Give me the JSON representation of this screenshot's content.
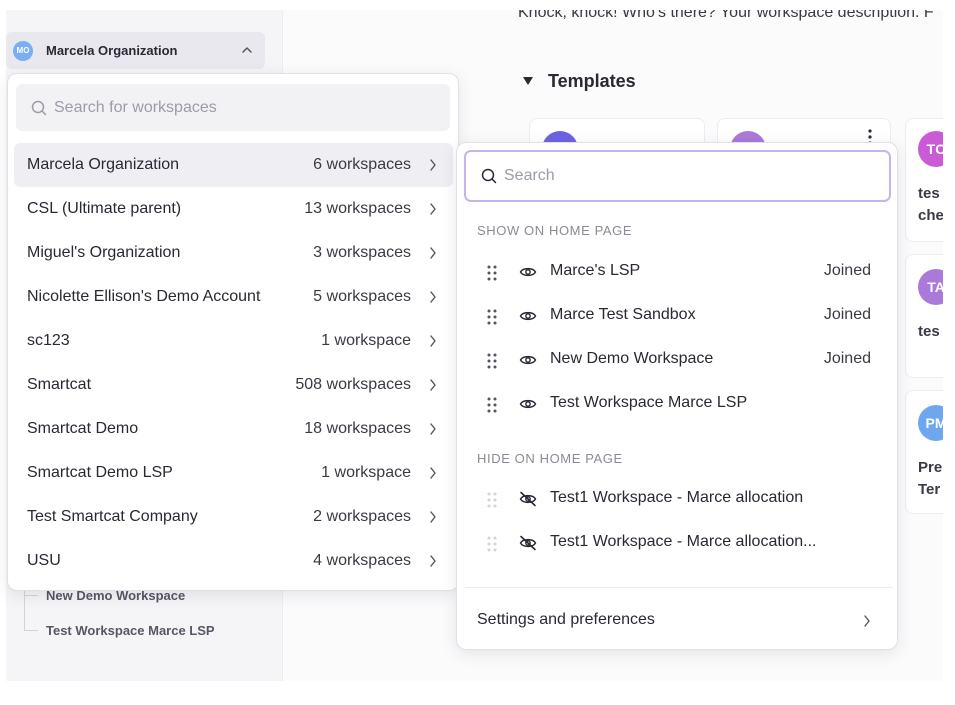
{
  "sidebar": {
    "org_button": {
      "avatar_initials": "MO",
      "name": "Marcela Organization",
      "avatar_color": "#79aef2",
      "chevron_icon": "chevron-up-icon"
    },
    "tree_items": [
      "New Demo Workspace",
      "Test Workspace Marce LSP"
    ]
  },
  "main": {
    "description": "Knock, knock! Who's there? Your workspace description. F",
    "templates_title": "Templates",
    "cards": [
      {
        "avatar": "TC",
        "color": "#ca5bd6",
        "line1": "tes",
        "line2": "che"
      },
      {
        "avatar": "TA",
        "color": "#a97ad9",
        "line1": "tes",
        "line2": ""
      },
      {
        "avatar": "PM",
        "color": "#6fa7ee",
        "line1": "Pre",
        "line2": "Ter"
      }
    ]
  },
  "org_dropdown": {
    "search_placeholder": "Search for workspaces",
    "search_icon": "search-icon",
    "orgs": [
      {
        "name": "Marcela Organization",
        "count": "6 workspaces"
      },
      {
        "name": "CSL (Ultimate parent)",
        "count": "13 workspaces"
      },
      {
        "name": "Miguel's Organization",
        "count": "3 workspaces"
      },
      {
        "name": "Nicolette Ellison's Demo Account",
        "count": "5 workspaces"
      },
      {
        "name": "sc123",
        "count": "1 workspace"
      },
      {
        "name": "Smartcat",
        "count": "508 workspaces"
      },
      {
        "name": "Smartcat Demo",
        "count": "18 workspaces"
      },
      {
        "name": "Smartcat Demo LSP",
        "count": "1 workspace"
      },
      {
        "name": "Test Smartcat Company",
        "count": "2 workspaces"
      },
      {
        "name": "USU",
        "count": "4 workspaces"
      }
    ],
    "active_index": 0
  },
  "workspace_panel": {
    "search_placeholder": "Search",
    "show_header": "SHOW ON HOME PAGE",
    "shown": [
      {
        "name": "Marce's LSP",
        "status": "Joined"
      },
      {
        "name": "Marce Test Sandbox",
        "status": "Joined"
      },
      {
        "name": "New Demo Workspace",
        "status": "Joined"
      },
      {
        "name": "Test Workspace Marce LSP",
        "status": ""
      }
    ],
    "hide_header": "HIDE ON HOME PAGE",
    "hidden": [
      {
        "name": "Test1 Workspace - Marce allocation"
      },
      {
        "name": "Test1 Workspace - Marce allocation..."
      }
    ],
    "settings_label": "Settings and preferences"
  }
}
